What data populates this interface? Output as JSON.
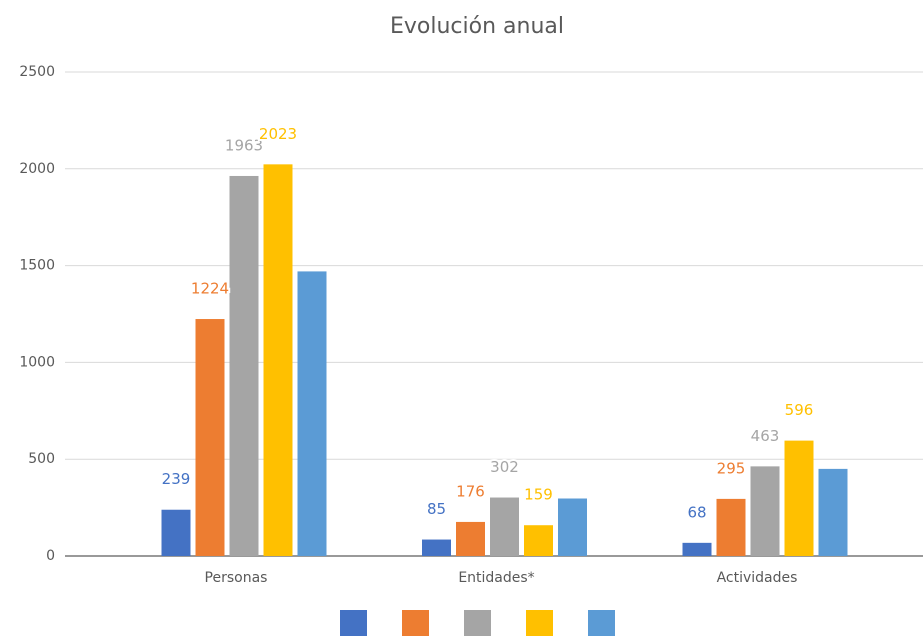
{
  "chart_data": {
    "type": "bar",
    "title": "Evolución anual",
    "categories": [
      "Personas",
      "Entidades*",
      "Actividades"
    ],
    "series": [
      {
        "color": "#4472c4",
        "values": [
          239,
          85,
          68
        ],
        "data_labels": true
      },
      {
        "color": "#ed7d31",
        "values": [
          1224,
          176,
          295
        ],
        "data_labels": true
      },
      {
        "color": "#a5a5a5",
        "values": [
          1963,
          302,
          463
        ],
        "data_labels": true
      },
      {
        "color": "#ffc000",
        "values": [
          2023,
          159,
          596
        ],
        "data_labels": true
      },
      {
        "color": "#5b9bd5",
        "values": [
          1470,
          297,
          450
        ],
        "data_labels": false
      }
    ],
    "ylim": [
      0,
      2500
    ],
    "yticks": [
      0,
      500,
      1000,
      1500,
      2000,
      2500
    ],
    "grid": true,
    "legend": "bottom"
  }
}
